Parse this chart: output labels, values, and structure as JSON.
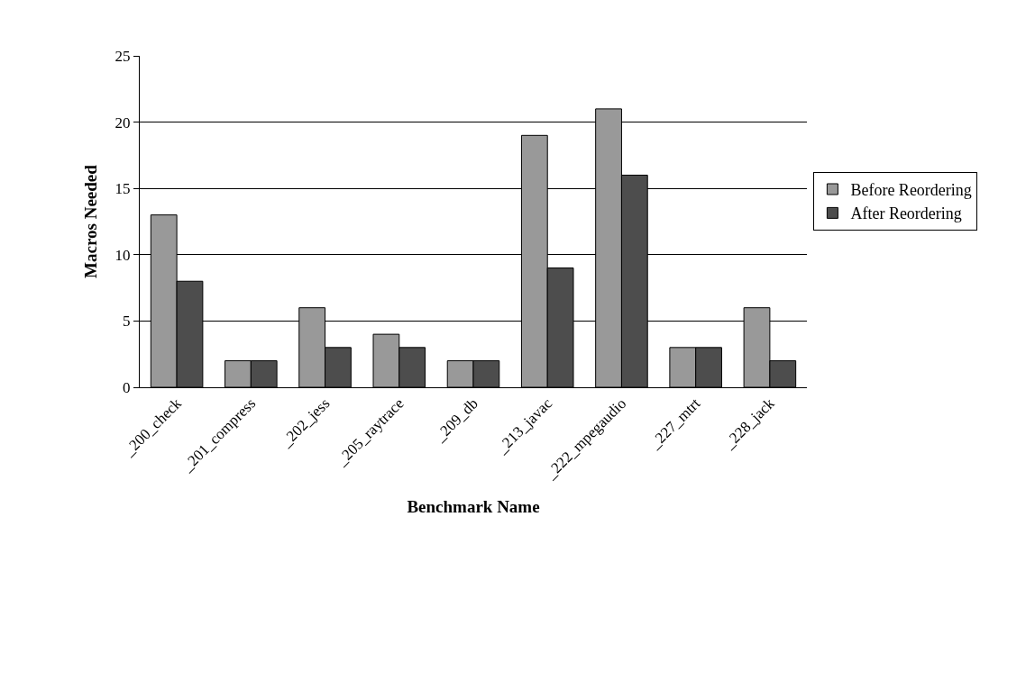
{
  "chart_data": {
    "type": "bar",
    "xlabel": "Benchmark Name",
    "ylabel": "Macros Needed",
    "categories": [
      "_200_check",
      "_201_compress",
      "_202_jess",
      "_205_raytrace",
      "_209_db",
      "_213_javac",
      "_222_mpegaudio",
      "_227_mtrt",
      "_228_jack"
    ],
    "series": [
      {
        "name": "Before Reordering",
        "color": "#999999",
        "values": [
          13,
          2,
          6,
          4,
          2,
          19,
          21,
          3,
          6
        ]
      },
      {
        "name": "After Reordering",
        "color": "#4d4d4d",
        "values": [
          8,
          2,
          3,
          3,
          2,
          9,
          16,
          3,
          2
        ]
      }
    ],
    "ylim": [
      0,
      25
    ],
    "yticks": [
      0,
      5,
      10,
      15,
      20,
      25
    ],
    "grid": "y",
    "legend": "right"
  }
}
